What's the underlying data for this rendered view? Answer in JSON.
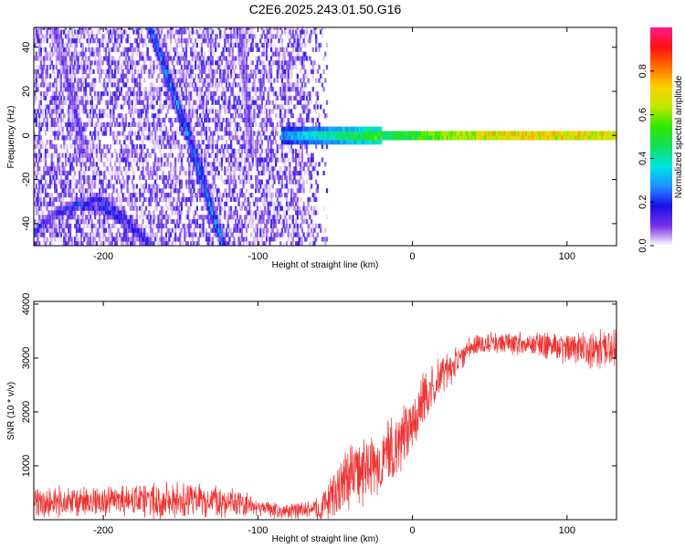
{
  "figure": {
    "title": "C2E6.2025.243.01.50.G16"
  },
  "chart_data": [
    {
      "type": "heatmap",
      "title": "C2E6.2025.243.01.50.G16",
      "xlabel": "Height of straight line (km)",
      "ylabel": "Frequency (Hz)",
      "xlim": [
        -245,
        132
      ],
      "ylim": [
        -50,
        49
      ],
      "x_ticks": [
        -200,
        -100,
        0,
        100
      ],
      "y_ticks": [
        -40,
        -20,
        0,
        20,
        40
      ],
      "colorbar": {
        "label": "Normalized spectral amplitude",
        "range": [
          0,
          1
        ],
        "ticks": [
          0.0,
          0.2,
          0.4,
          0.6,
          0.8
        ],
        "colormap": [
          "#ffffff",
          "#7a2ee6",
          "#1a0fe8",
          "#1e90ff",
          "#00e5e5",
          "#10e05a",
          "#2ee800",
          "#c0e800",
          "#ffd000",
          "#ff7000",
          "#ff1010",
          "#ff1a8a"
        ]
      },
      "features": [
        {
          "kind": "background_noise",
          "x_range": [
            -245,
            -55
          ],
          "y_range": [
            -50,
            49
          ],
          "amplitude": 0.1
        },
        {
          "kind": "diagonal_trace",
          "x": [
            -170,
            -160,
            -150,
            -140,
            -132,
            -122
          ],
          "y": [
            49,
            30,
            10,
            -10,
            -30,
            -50
          ],
          "amplitude": 0.25
        },
        {
          "kind": "diagonal_trace",
          "x": [
            -232,
            -225,
            -218,
            -212
          ],
          "y": [
            49,
            30,
            10,
            -10
          ],
          "amplitude": 0.12
        },
        {
          "kind": "diagonal_trace",
          "x": [
            -112,
            -108,
            -104
          ],
          "y": [
            49,
            20,
            -10
          ],
          "amplitude": 0.1
        },
        {
          "kind": "arc",
          "x": [
            -245,
            -230,
            -215,
            -200,
            -185,
            -170
          ],
          "y": [
            -44,
            -35,
            -31,
            -33,
            -40,
            -50
          ],
          "amplitude": 0.18
        },
        {
          "kind": "arc",
          "x": [
            -215,
            -205,
            -195,
            -185,
            -175,
            -168
          ],
          "y": [
            -34,
            -28,
            -32,
            -38,
            -45,
            -50
          ],
          "amplitude": 0.15
        },
        {
          "kind": "carrier_line",
          "x_range": [
            -85,
            132
          ],
          "y": 0,
          "amplitude_start": 0.3,
          "amplitude_end": 0.95
        }
      ]
    },
    {
      "type": "line",
      "xlabel": "Height of straight line (km)",
      "ylabel": "SNR (10 * v/v)",
      "xlim": [
        -245,
        132
      ],
      "ylim": [
        0,
        4050
      ],
      "x_ticks": [
        -200,
        -100,
        0,
        100
      ],
      "y_ticks": [
        1000,
        2000,
        3000,
        4000
      ],
      "color": "#ee3333",
      "envelope": {
        "x": [
          -245,
          -200,
          -150,
          -120,
          -100,
          -80,
          -60,
          -50,
          -40,
          -30,
          -20,
          -10,
          0,
          10,
          20,
          30,
          40,
          60,
          80,
          100,
          120,
          132
        ],
        "mean": [
          300,
          330,
          370,
          340,
          220,
          150,
          200,
          500,
          850,
          900,
          1050,
          1350,
          1900,
          2300,
          2700,
          3000,
          3250,
          3300,
          3250,
          3200,
          3150,
          3200
        ],
        "spread": [
          320,
          350,
          380,
          350,
          200,
          150,
          250,
          550,
          750,
          700,
          700,
          700,
          650,
          550,
          450,
          300,
          230,
          250,
          280,
          320,
          400,
          400
        ]
      }
    }
  ]
}
